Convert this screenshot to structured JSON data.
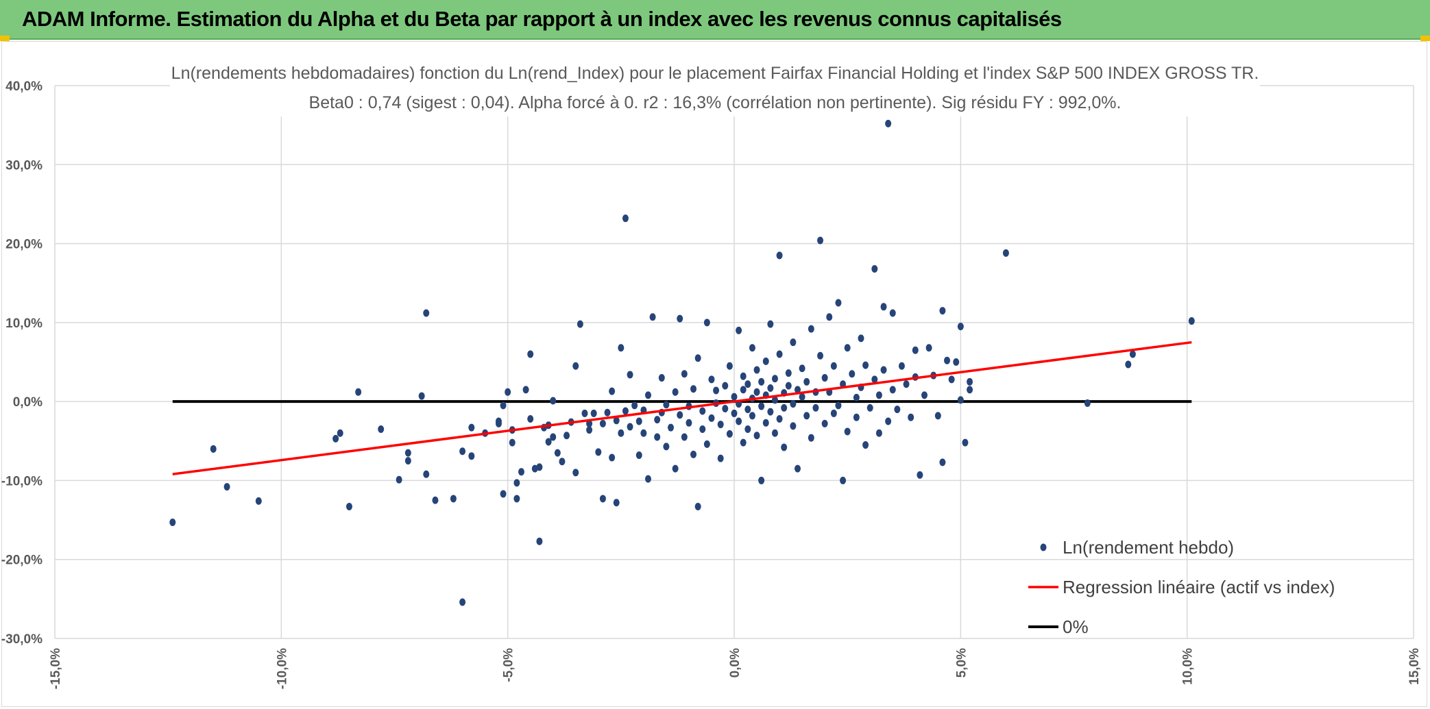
{
  "header": {
    "title": "ADAM Informe. Estimation du Alpha et du Beta par rapport à un index avec les revenus connus capitalisés",
    "background": "#7dc87d"
  },
  "chart_data": {
    "type": "scatter",
    "title": "Ln(rendements hebdomadaires) fonction du Ln(rend_Index) pour le placement Fairfax Financial Holding et l'index S&P 500 INDEX GROSS TR.",
    "subtitle": "Beta0 : 0,74 (sigest : 0,04). Alpha forcé à 0. r2 : 16,3% (corrélation non pertinente). Sig résidu FY : 992,0%.",
    "xlabel": "",
    "ylabel": "",
    "xlim": [
      -0.15,
      0.15
    ],
    "ylim": [
      -0.3,
      0.4
    ],
    "x_ticks": [
      -0.15,
      -0.1,
      -0.05,
      0.0,
      0.05,
      0.1,
      0.15
    ],
    "x_tick_labels": [
      "-15,0%",
      "-10,0%",
      "-5,0%",
      "0,0%",
      "5,0%",
      "10,0%",
      "15,0%"
    ],
    "y_ticks": [
      0.4,
      0.3,
      0.2,
      0.1,
      0.0,
      -0.1,
      -0.2,
      -0.3
    ],
    "y_tick_labels": [
      "40,0%",
      "30,0%",
      "20,0%",
      "10,0%",
      "0,0%",
      "-10,0%",
      "-20,0%",
      "-30,0%"
    ],
    "grid": true,
    "legend_position": "bottom-right",
    "series": [
      {
        "name": "Ln(rendement hebdo)",
        "kind": "scatter",
        "color": "#264478",
        "points": [
          [
            -0.124,
            -0.153
          ],
          [
            -0.115,
            -0.06
          ],
          [
            -0.112,
            -0.108
          ],
          [
            -0.105,
            -0.126
          ],
          [
            -0.088,
            -0.047
          ],
          [
            -0.087,
            -0.04
          ],
          [
            -0.085,
            -0.133
          ],
          [
            -0.083,
            0.012
          ],
          [
            -0.078,
            -0.035
          ],
          [
            -0.074,
            -0.099
          ],
          [
            -0.072,
            -0.075
          ],
          [
            -0.072,
            -0.065
          ],
          [
            -0.069,
            0.007
          ],
          [
            -0.068,
            0.112
          ],
          [
            -0.068,
            -0.092
          ],
          [
            -0.066,
            -0.125
          ],
          [
            -0.062,
            -0.123
          ],
          [
            -0.06,
            -0.254
          ],
          [
            -0.06,
            -0.063
          ],
          [
            -0.058,
            -0.069
          ],
          [
            -0.058,
            -0.033
          ],
          [
            -0.055,
            -0.04
          ],
          [
            -0.052,
            -0.028
          ],
          [
            -0.052,
            -0.025
          ],
          [
            -0.051,
            -0.005
          ],
          [
            -0.051,
            -0.117
          ],
          [
            -0.05,
            0.012
          ],
          [
            -0.049,
            -0.036
          ],
          [
            -0.049,
            -0.052
          ],
          [
            -0.048,
            -0.123
          ],
          [
            -0.048,
            -0.103
          ],
          [
            -0.047,
            -0.089
          ],
          [
            -0.046,
            0.015
          ],
          [
            -0.045,
            0.06
          ],
          [
            -0.045,
            -0.022
          ],
          [
            -0.044,
            -0.085
          ],
          [
            -0.043,
            -0.083
          ],
          [
            -0.043,
            -0.177
          ],
          [
            -0.042,
            -0.033
          ],
          [
            -0.041,
            -0.03
          ],
          [
            -0.041,
            -0.051
          ],
          [
            -0.04,
            -0.045
          ],
          [
            -0.04,
            0.001
          ],
          [
            -0.039,
            -0.065
          ],
          [
            -0.038,
            -0.076
          ],
          [
            -0.037,
            -0.043
          ],
          [
            -0.036,
            -0.026
          ],
          [
            -0.035,
            0.045
          ],
          [
            -0.035,
            -0.09
          ],
          [
            -0.034,
            0.098
          ],
          [
            -0.033,
            -0.015
          ],
          [
            -0.032,
            -0.036
          ],
          [
            -0.032,
            -0.028
          ],
          [
            -0.031,
            -0.015
          ],
          [
            -0.03,
            -0.064
          ],
          [
            -0.029,
            -0.028
          ],
          [
            -0.029,
            -0.123
          ],
          [
            -0.028,
            -0.014
          ],
          [
            -0.027,
            -0.071
          ],
          [
            -0.027,
            0.013
          ],
          [
            -0.026,
            -0.024
          ],
          [
            -0.026,
            -0.128
          ],
          [
            -0.025,
            -0.04
          ],
          [
            -0.025,
            0.068
          ],
          [
            -0.024,
            -0.012
          ],
          [
            -0.024,
            0.232
          ],
          [
            -0.023,
            -0.032
          ],
          [
            -0.023,
            0.034
          ],
          [
            -0.022,
            -0.005
          ],
          [
            -0.021,
            -0.068
          ],
          [
            -0.021,
            -0.025
          ],
          [
            -0.02,
            -0.04
          ],
          [
            -0.02,
            -0.011
          ],
          [
            -0.019,
            -0.098
          ],
          [
            -0.019,
            0.008
          ],
          [
            -0.018,
            0.107
          ],
          [
            -0.017,
            -0.023
          ],
          [
            -0.017,
            -0.045
          ],
          [
            -0.016,
            -0.014
          ],
          [
            -0.016,
            0.03
          ],
          [
            -0.015,
            -0.057
          ],
          [
            -0.015,
            -0.004
          ],
          [
            -0.014,
            -0.033
          ],
          [
            -0.013,
            0.012
          ],
          [
            -0.013,
            -0.085
          ],
          [
            -0.012,
            -0.017
          ],
          [
            -0.012,
            0.105
          ],
          [
            -0.011,
            0.035
          ],
          [
            -0.011,
            -0.045
          ],
          [
            -0.01,
            -0.006
          ],
          [
            -0.01,
            -0.027
          ],
          [
            -0.009,
            -0.067
          ],
          [
            -0.009,
            0.016
          ],
          [
            -0.008,
            -0.133
          ],
          [
            -0.008,
            0.055
          ],
          [
            -0.007,
            -0.012
          ],
          [
            -0.007,
            -0.035
          ],
          [
            -0.006,
            0.1
          ],
          [
            -0.006,
            -0.054
          ],
          [
            -0.005,
            0.028
          ],
          [
            -0.005,
            -0.021
          ],
          [
            -0.004,
            -0.002
          ],
          [
            -0.004,
            0.014
          ],
          [
            -0.003,
            -0.072
          ],
          [
            -0.003,
            -0.029
          ],
          [
            -0.002,
            0.02
          ],
          [
            -0.002,
            -0.009
          ],
          [
            -0.001,
            0.045
          ],
          [
            -0.001,
            -0.041
          ],
          [
            0.0,
            -0.015
          ],
          [
            0.0,
            0.006
          ],
          [
            0.001,
            0.09
          ],
          [
            0.001,
            -0.003
          ],
          [
            0.001,
            -0.025
          ],
          [
            0.002,
            0.015
          ],
          [
            0.002,
            -0.052
          ],
          [
            0.002,
            0.032
          ],
          [
            0.003,
            -0.01
          ],
          [
            0.003,
            0.022
          ],
          [
            0.003,
            -0.035
          ],
          [
            0.004,
            0.004
          ],
          [
            0.004,
            0.068
          ],
          [
            0.004,
            -0.018
          ],
          [
            0.005,
            0.012
          ],
          [
            0.005,
            -0.043
          ],
          [
            0.005,
            0.04
          ],
          [
            0.006,
            -0.006
          ],
          [
            0.006,
            0.025
          ],
          [
            0.006,
            -0.1
          ],
          [
            0.007,
            0.008
          ],
          [
            0.007,
            -0.027
          ],
          [
            0.007,
            0.051
          ],
          [
            0.008,
            -0.013
          ],
          [
            0.008,
            0.017
          ],
          [
            0.008,
            0.098
          ],
          [
            0.009,
            -0.04
          ],
          [
            0.009,
            0.029
          ],
          [
            0.009,
            0.002
          ],
          [
            0.01,
            0.185
          ],
          [
            0.01,
            -0.022
          ],
          [
            0.01,
            0.06
          ],
          [
            0.011,
            0.011
          ],
          [
            0.011,
            -0.058
          ],
          [
            0.011,
            -0.008
          ],
          [
            0.012,
            0.036
          ],
          [
            0.012,
            0.02
          ],
          [
            0.013,
            -0.031
          ],
          [
            0.013,
            0.075
          ],
          [
            0.013,
            -0.003
          ],
          [
            0.014,
            0.015
          ],
          [
            0.014,
            -0.085
          ],
          [
            0.015,
            0.042
          ],
          [
            0.015,
            0.006
          ],
          [
            0.016,
            -0.018
          ],
          [
            0.016,
            0.025
          ],
          [
            0.017,
            0.092
          ],
          [
            0.017,
            -0.046
          ],
          [
            0.018,
            0.012
          ],
          [
            0.018,
            -0.008
          ],
          [
            0.019,
            0.058
          ],
          [
            0.019,
            0.204
          ],
          [
            0.02,
            -0.028
          ],
          [
            0.02,
            0.03
          ],
          [
            0.021,
            0.012
          ],
          [
            0.021,
            0.107
          ],
          [
            0.022,
            -0.015
          ],
          [
            0.022,
            0.045
          ],
          [
            0.023,
            0.125
          ],
          [
            0.023,
            -0.005
          ],
          [
            0.024,
            0.022
          ],
          [
            0.024,
            -0.1
          ],
          [
            0.025,
            0.068
          ],
          [
            0.025,
            -0.038
          ],
          [
            0.026,
            0.035
          ],
          [
            0.027,
            0.005
          ],
          [
            0.027,
            -0.02
          ],
          [
            0.028,
            0.08
          ],
          [
            0.028,
            0.018
          ],
          [
            0.029,
            -0.055
          ],
          [
            0.029,
            0.046
          ],
          [
            0.03,
            -0.008
          ],
          [
            0.031,
            0.028
          ],
          [
            0.031,
            0.168
          ],
          [
            0.032,
            -0.04
          ],
          [
            0.032,
            0.008
          ],
          [
            0.033,
            0.12
          ],
          [
            0.033,
            0.04
          ],
          [
            0.034,
            -0.025
          ],
          [
            0.034,
            0.352
          ],
          [
            0.035,
            0.015
          ],
          [
            0.035,
            0.112
          ],
          [
            0.036,
            -0.01
          ],
          [
            0.037,
            0.045
          ],
          [
            0.038,
            0.022
          ],
          [
            0.039,
            -0.02
          ],
          [
            0.04,
            0.065
          ],
          [
            0.04,
            0.031
          ],
          [
            0.041,
            -0.093
          ],
          [
            0.042,
            0.008
          ],
          [
            0.043,
            0.068
          ],
          [
            0.044,
            0.033
          ],
          [
            0.045,
            -0.018
          ],
          [
            0.046,
            0.115
          ],
          [
            0.046,
            -0.077
          ],
          [
            0.047,
            0.052
          ],
          [
            0.048,
            0.028
          ],
          [
            0.049,
            0.05
          ],
          [
            0.05,
            0.095
          ],
          [
            0.05,
            0.002
          ],
          [
            0.051,
            -0.052
          ],
          [
            0.052,
            0.025
          ],
          [
            0.052,
            0.015
          ],
          [
            0.06,
            0.188
          ],
          [
            0.078,
            -0.002
          ],
          [
            0.087,
            0.047
          ],
          [
            0.088,
            0.06
          ],
          [
            0.101,
            0.102
          ]
        ]
      },
      {
        "name": "Regression linéaire (actif vs index)",
        "kind": "line",
        "color": "#ff0000",
        "x": [
          -0.124,
          0.101
        ],
        "y": [
          -0.092,
          0.075
        ]
      },
      {
        "name": "0%",
        "kind": "line",
        "color": "#000000",
        "x": [
          -0.124,
          0.101
        ],
        "y": [
          0.0,
          0.0
        ]
      }
    ]
  }
}
